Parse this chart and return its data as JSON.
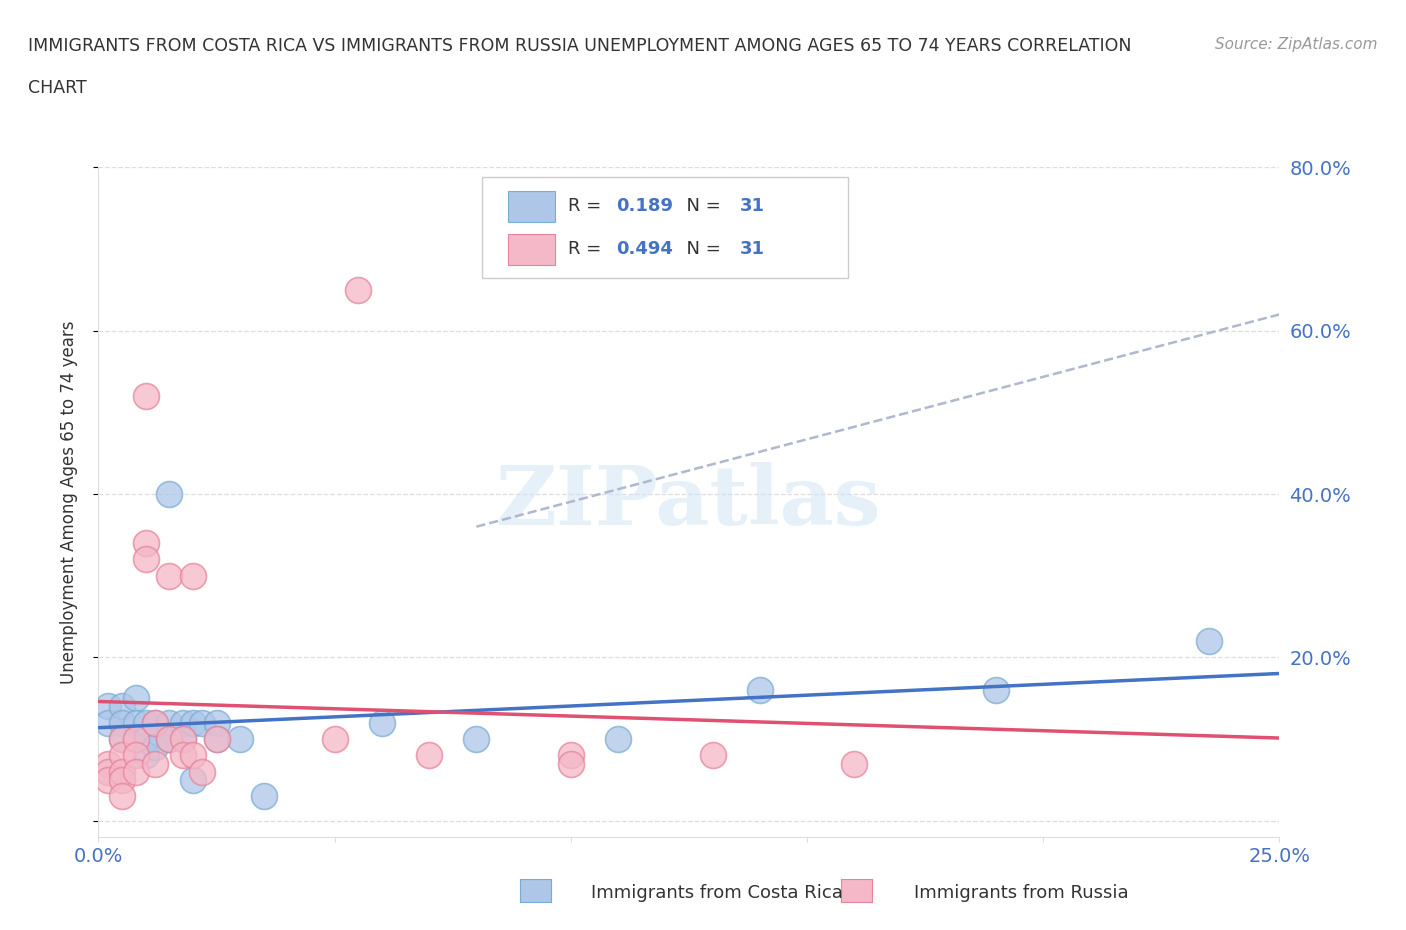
{
  "title_line1": "IMMIGRANTS FROM COSTA RICA VS IMMIGRANTS FROM RUSSIA UNEMPLOYMENT AMONG AGES 65 TO 74 YEARS CORRELATION",
  "title_line2": "CHART",
  "source_text": "Source: ZipAtlas.com",
  "ylabel": "Unemployment Among Ages 65 to 74 years",
  "xlim": [
    0.0,
    0.25
  ],
  "ylim": [
    -0.02,
    0.8
  ],
  "xticks": [
    0.0,
    0.05,
    0.1,
    0.15,
    0.2,
    0.25
  ],
  "xticklabels": [
    "0.0%",
    "",
    "",
    "",
    "",
    "25.0%"
  ],
  "yticks": [
    0.0,
    0.2,
    0.4,
    0.6,
    0.8
  ],
  "yticklabels_right": [
    "",
    "20.0%",
    "40.0%",
    "60.0%",
    "80.0%"
  ],
  "costa_rica_color": "#aec6e8",
  "russia_color": "#f4b8c8",
  "costa_rica_edge": "#7badd4",
  "russia_edge": "#e8849a",
  "costa_rica_line_color": "#4472c4",
  "russia_line_color": "#e05070",
  "dashed_line_color": "#b0b8d0",
  "R_costa_rica": 0.189,
  "R_russia": 0.494,
  "N": 31,
  "watermark": "ZIPatlas",
  "background_color": "#ffffff",
  "label_color": "#4472c4",
  "text_color": "#333333",
  "costa_rica_scatter": [
    [
      0.002,
      0.14
    ],
    [
      0.002,
      0.12
    ],
    [
      0.005,
      0.14
    ],
    [
      0.005,
      0.12
    ],
    [
      0.005,
      0.1
    ],
    [
      0.008,
      0.15
    ],
    [
      0.008,
      0.12
    ],
    [
      0.008,
      0.1
    ],
    [
      0.01,
      0.12
    ],
    [
      0.01,
      0.1
    ],
    [
      0.01,
      0.08
    ],
    [
      0.012,
      0.12
    ],
    [
      0.012,
      0.09
    ],
    [
      0.015,
      0.4
    ],
    [
      0.015,
      0.12
    ],
    [
      0.015,
      0.1
    ],
    [
      0.018,
      0.12
    ],
    [
      0.018,
      0.1
    ],
    [
      0.02,
      0.12
    ],
    [
      0.02,
      0.05
    ],
    [
      0.022,
      0.12
    ],
    [
      0.025,
      0.12
    ],
    [
      0.025,
      0.1
    ],
    [
      0.03,
      0.1
    ],
    [
      0.035,
      0.03
    ],
    [
      0.06,
      0.12
    ],
    [
      0.08,
      0.1
    ],
    [
      0.11,
      0.1
    ],
    [
      0.14,
      0.16
    ],
    [
      0.19,
      0.16
    ],
    [
      0.235,
      0.22
    ]
  ],
  "russia_scatter": [
    [
      0.002,
      0.07
    ],
    [
      0.002,
      0.06
    ],
    [
      0.002,
      0.05
    ],
    [
      0.005,
      0.1
    ],
    [
      0.005,
      0.08
    ],
    [
      0.005,
      0.06
    ],
    [
      0.005,
      0.05
    ],
    [
      0.005,
      0.03
    ],
    [
      0.008,
      0.1
    ],
    [
      0.008,
      0.08
    ],
    [
      0.008,
      0.06
    ],
    [
      0.01,
      0.52
    ],
    [
      0.01,
      0.34
    ],
    [
      0.01,
      0.32
    ],
    [
      0.012,
      0.12
    ],
    [
      0.012,
      0.07
    ],
    [
      0.015,
      0.3
    ],
    [
      0.015,
      0.1
    ],
    [
      0.018,
      0.1
    ],
    [
      0.018,
      0.08
    ],
    [
      0.02,
      0.3
    ],
    [
      0.02,
      0.08
    ],
    [
      0.022,
      0.06
    ],
    [
      0.025,
      0.1
    ],
    [
      0.05,
      0.1
    ],
    [
      0.055,
      0.65
    ],
    [
      0.07,
      0.08
    ],
    [
      0.1,
      0.08
    ],
    [
      0.1,
      0.07
    ],
    [
      0.13,
      0.08
    ],
    [
      0.16,
      0.07
    ]
  ]
}
